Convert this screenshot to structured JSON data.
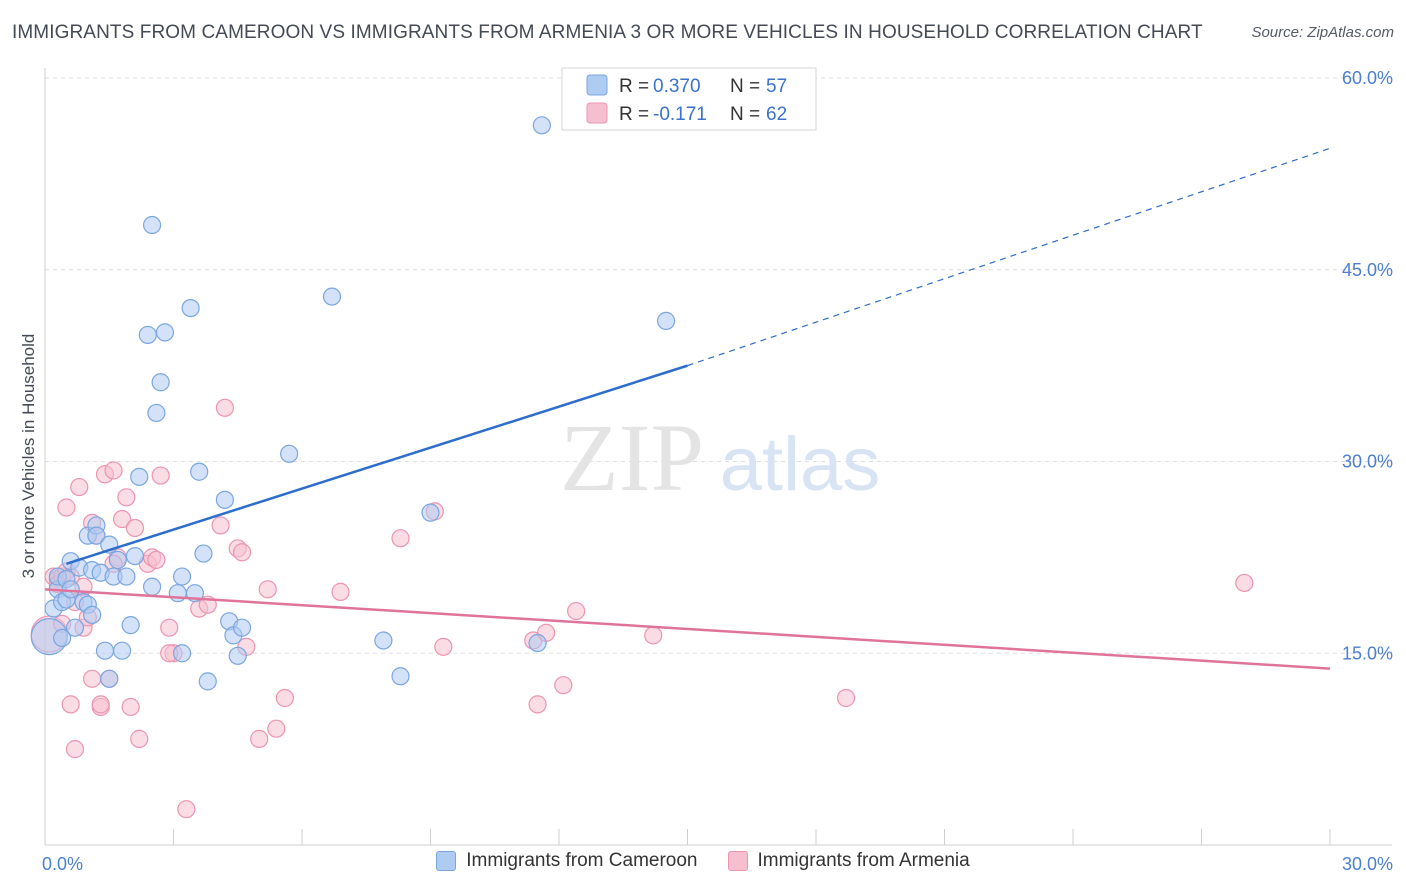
{
  "title": "IMMIGRANTS FROM CAMEROON VS IMMIGRANTS FROM ARMENIA 3 OR MORE VEHICLES IN HOUSEHOLD CORRELATION CHART",
  "source": "Source: ZipAtlas.com",
  "watermark": {
    "zip": "ZIP",
    "atlas": "atlas"
  },
  "colors": {
    "blue_fill": "#aecbf2",
    "blue_stroke": "#7aa6e0",
    "blue_line": "#2d6dcc",
    "pink_fill": "#f6bfd0",
    "pink_stroke": "#ec94b1",
    "pink_line": "#e0739a",
    "tick_label": "#4a7fd1",
    "grid": "#dddddd"
  },
  "legend": {
    "rows": [
      {
        "r_label": "R =",
        "r_value": "0.370",
        "n_label": "N =",
        "n_value": "57"
      },
      {
        "r_label": "R =",
        "r_value": "-0.171",
        "n_label": "N =",
        "n_value": "62"
      }
    ]
  },
  "chart_data": {
    "type": "scatter",
    "title": "IMMIGRANTS FROM CAMEROON VS IMMIGRANTS FROM ARMENIA 3 OR MORE VEHICLES IN HOUSEHOLD CORRELATION CHART",
    "xlabel": "",
    "ylabel": "3 or more Vehicles in Household",
    "xlim": [
      0,
      30
    ],
    "ylim": [
      0,
      60
    ],
    "x_tick_labels": [
      "0.0%",
      "30.0%"
    ],
    "y_ticks": [
      15,
      30,
      45,
      60
    ],
    "y_tick_labels": [
      "15.0%",
      "30.0%",
      "45.0%",
      "60.0%"
    ],
    "grid": true,
    "legend_position": "top-center",
    "series": [
      {
        "name": "Immigrants from Cameroon",
        "color": "#aecbf2",
        "trend": {
          "x0": 0.5,
          "y0": 22.0,
          "x1": 15.0,
          "y1": 37.5,
          "x_dash_end": 30.0,
          "y_dash_end": 54.5
        },
        "points": [
          [
            0.1,
            16.3
          ],
          [
            0.2,
            18.5
          ],
          [
            0.3,
            20.0
          ],
          [
            0.3,
            21.0
          ],
          [
            0.4,
            19.0
          ],
          [
            0.5,
            20.8
          ],
          [
            0.5,
            19.2
          ],
          [
            0.6,
            22.2
          ],
          [
            0.6,
            20.0
          ],
          [
            0.7,
            17.0
          ],
          [
            0.8,
            21.7
          ],
          [
            0.9,
            19.0
          ],
          [
            1.0,
            24.2
          ],
          [
            1.0,
            18.8
          ],
          [
            1.1,
            21.5
          ],
          [
            1.1,
            18.0
          ],
          [
            1.2,
            25.0
          ],
          [
            1.2,
            24.2
          ],
          [
            1.3,
            21.3
          ],
          [
            1.4,
            15.2
          ],
          [
            1.5,
            23.5
          ],
          [
            1.6,
            21.0
          ],
          [
            1.7,
            22.3
          ],
          [
            1.8,
            15.2
          ],
          [
            1.9,
            21.0
          ],
          [
            2.0,
            17.2
          ],
          [
            2.1,
            22.6
          ],
          [
            2.2,
            28.8
          ],
          [
            2.4,
            39.9
          ],
          [
            2.5,
            48.5
          ],
          [
            2.5,
            20.2
          ],
          [
            2.6,
            33.8
          ],
          [
            2.7,
            36.2
          ],
          [
            2.8,
            40.1
          ],
          [
            3.1,
            19.7
          ],
          [
            3.2,
            21.0
          ],
          [
            3.4,
            42.0
          ],
          [
            3.5,
            19.7
          ],
          [
            3.6,
            29.2
          ],
          [
            3.7,
            22.8
          ],
          [
            4.2,
            27.0
          ],
          [
            4.3,
            17.5
          ],
          [
            4.4,
            16.4
          ],
          [
            4.5,
            14.8
          ],
          [
            4.6,
            17.0
          ],
          [
            5.7,
            30.6
          ],
          [
            6.7,
            42.9
          ],
          [
            7.9,
            16.0
          ],
          [
            8.3,
            13.2
          ],
          [
            9.0,
            26.0
          ],
          [
            11.5,
            15.8
          ],
          [
            11.6,
            56.3
          ],
          [
            14.5,
            41.0
          ],
          [
            1.5,
            13.0
          ],
          [
            3.2,
            15.0
          ],
          [
            3.8,
            12.8
          ],
          [
            0.4,
            16.2
          ]
        ]
      },
      {
        "name": "Immigrants from Armenia",
        "color": "#f6bfd0",
        "trend": {
          "x0": 0.0,
          "y0": 20.0,
          "x1": 30.0,
          "y1": 13.8
        },
        "points": [
          [
            0.1,
            16.5
          ],
          [
            0.2,
            21.0
          ],
          [
            0.3,
            20.8
          ],
          [
            0.3,
            20.4
          ],
          [
            0.4,
            21.0
          ],
          [
            0.5,
            26.4
          ],
          [
            0.5,
            21.4
          ],
          [
            0.6,
            11.0
          ],
          [
            0.7,
            7.5
          ],
          [
            0.7,
            19.0
          ],
          [
            0.8,
            28.0
          ],
          [
            0.9,
            17.0
          ],
          [
            0.9,
            20.2
          ],
          [
            1.0,
            17.8
          ],
          [
            1.1,
            13.0
          ],
          [
            1.1,
            25.2
          ],
          [
            1.2,
            24.2
          ],
          [
            1.3,
            10.8
          ],
          [
            1.4,
            29.0
          ],
          [
            1.5,
            13.0
          ],
          [
            1.6,
            29.3
          ],
          [
            1.7,
            22.5
          ],
          [
            1.8,
            25.5
          ],
          [
            1.9,
            27.2
          ],
          [
            2.0,
            10.8
          ],
          [
            2.1,
            24.8
          ],
          [
            2.2,
            8.3
          ],
          [
            2.4,
            22.0
          ],
          [
            2.5,
            22.5
          ],
          [
            2.6,
            22.3
          ],
          [
            2.7,
            28.9
          ],
          [
            2.9,
            17.0
          ],
          [
            3.0,
            15.0
          ],
          [
            3.3,
            2.8
          ],
          [
            3.6,
            18.5
          ],
          [
            3.8,
            18.8
          ],
          [
            4.1,
            25.0
          ],
          [
            4.2,
            34.2
          ],
          [
            4.5,
            23.2
          ],
          [
            4.6,
            22.9
          ],
          [
            4.7,
            15.5
          ],
          [
            5.0,
            8.3
          ],
          [
            5.2,
            20.0
          ],
          [
            5.4,
            9.1
          ],
          [
            5.6,
            11.5
          ],
          [
            6.9,
            19.8
          ],
          [
            8.3,
            24.0
          ],
          [
            9.1,
            26.1
          ],
          [
            9.3,
            15.5
          ],
          [
            11.4,
            16.0
          ],
          [
            11.5,
            11.0
          ],
          [
            11.7,
            16.6
          ],
          [
            12.1,
            12.5
          ],
          [
            12.4,
            18.3
          ],
          [
            14.2,
            16.4
          ],
          [
            18.7,
            11.5
          ],
          [
            28.0,
            20.5
          ],
          [
            1.6,
            22.0
          ],
          [
            2.9,
            15.0
          ],
          [
            0.4,
            17.3
          ],
          [
            0.6,
            21.0
          ],
          [
            1.3,
            11.0
          ]
        ]
      }
    ]
  }
}
